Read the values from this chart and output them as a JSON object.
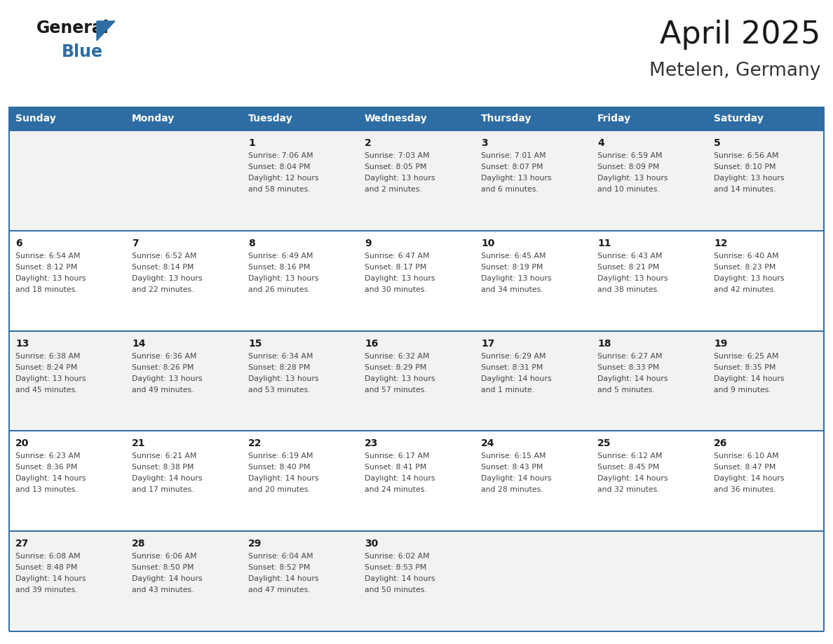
{
  "title": "April 2025",
  "subtitle": "Metelen, Germany",
  "header_bg_color": "#2E6DA4",
  "header_text_color": "#FFFFFF",
  "row_colors": [
    "#F2F2F2",
    "#FFFFFF",
    "#F2F2F2",
    "#FFFFFF",
    "#F2F2F2"
  ],
  "border_color": "#2E6DA4",
  "day_headers": [
    "Sunday",
    "Monday",
    "Tuesday",
    "Wednesday",
    "Thursday",
    "Friday",
    "Saturday"
  ],
  "title_color": "#1a1a1a",
  "subtitle_color": "#333333",
  "date_text_color": "#1a1a1a",
  "info_text_color": "#444444",
  "logo_general_color": "#1a1a1a",
  "logo_blue_color": "#2E6DA4",
  "weeks": [
    [
      {
        "day": null,
        "info": ""
      },
      {
        "day": null,
        "info": ""
      },
      {
        "day": 1,
        "info": "Sunrise: 7:06 AM\nSunset: 8:04 PM\nDaylight: 12 hours\nand 58 minutes."
      },
      {
        "day": 2,
        "info": "Sunrise: 7:03 AM\nSunset: 8:05 PM\nDaylight: 13 hours\nand 2 minutes."
      },
      {
        "day": 3,
        "info": "Sunrise: 7:01 AM\nSunset: 8:07 PM\nDaylight: 13 hours\nand 6 minutes."
      },
      {
        "day": 4,
        "info": "Sunrise: 6:59 AM\nSunset: 8:09 PM\nDaylight: 13 hours\nand 10 minutes."
      },
      {
        "day": 5,
        "info": "Sunrise: 6:56 AM\nSunset: 8:10 PM\nDaylight: 13 hours\nand 14 minutes."
      }
    ],
    [
      {
        "day": 6,
        "info": "Sunrise: 6:54 AM\nSunset: 8:12 PM\nDaylight: 13 hours\nand 18 minutes."
      },
      {
        "day": 7,
        "info": "Sunrise: 6:52 AM\nSunset: 8:14 PM\nDaylight: 13 hours\nand 22 minutes."
      },
      {
        "day": 8,
        "info": "Sunrise: 6:49 AM\nSunset: 8:16 PM\nDaylight: 13 hours\nand 26 minutes."
      },
      {
        "day": 9,
        "info": "Sunrise: 6:47 AM\nSunset: 8:17 PM\nDaylight: 13 hours\nand 30 minutes."
      },
      {
        "day": 10,
        "info": "Sunrise: 6:45 AM\nSunset: 8:19 PM\nDaylight: 13 hours\nand 34 minutes."
      },
      {
        "day": 11,
        "info": "Sunrise: 6:43 AM\nSunset: 8:21 PM\nDaylight: 13 hours\nand 38 minutes."
      },
      {
        "day": 12,
        "info": "Sunrise: 6:40 AM\nSunset: 8:23 PM\nDaylight: 13 hours\nand 42 minutes."
      }
    ],
    [
      {
        "day": 13,
        "info": "Sunrise: 6:38 AM\nSunset: 8:24 PM\nDaylight: 13 hours\nand 45 minutes."
      },
      {
        "day": 14,
        "info": "Sunrise: 6:36 AM\nSunset: 8:26 PM\nDaylight: 13 hours\nand 49 minutes."
      },
      {
        "day": 15,
        "info": "Sunrise: 6:34 AM\nSunset: 8:28 PM\nDaylight: 13 hours\nand 53 minutes."
      },
      {
        "day": 16,
        "info": "Sunrise: 6:32 AM\nSunset: 8:29 PM\nDaylight: 13 hours\nand 57 minutes."
      },
      {
        "day": 17,
        "info": "Sunrise: 6:29 AM\nSunset: 8:31 PM\nDaylight: 14 hours\nand 1 minute."
      },
      {
        "day": 18,
        "info": "Sunrise: 6:27 AM\nSunset: 8:33 PM\nDaylight: 14 hours\nand 5 minutes."
      },
      {
        "day": 19,
        "info": "Sunrise: 6:25 AM\nSunset: 8:35 PM\nDaylight: 14 hours\nand 9 minutes."
      }
    ],
    [
      {
        "day": 20,
        "info": "Sunrise: 6:23 AM\nSunset: 8:36 PM\nDaylight: 14 hours\nand 13 minutes."
      },
      {
        "day": 21,
        "info": "Sunrise: 6:21 AM\nSunset: 8:38 PM\nDaylight: 14 hours\nand 17 minutes."
      },
      {
        "day": 22,
        "info": "Sunrise: 6:19 AM\nSunset: 8:40 PM\nDaylight: 14 hours\nand 20 minutes."
      },
      {
        "day": 23,
        "info": "Sunrise: 6:17 AM\nSunset: 8:41 PM\nDaylight: 14 hours\nand 24 minutes."
      },
      {
        "day": 24,
        "info": "Sunrise: 6:15 AM\nSunset: 8:43 PM\nDaylight: 14 hours\nand 28 minutes."
      },
      {
        "day": 25,
        "info": "Sunrise: 6:12 AM\nSunset: 8:45 PM\nDaylight: 14 hours\nand 32 minutes."
      },
      {
        "day": 26,
        "info": "Sunrise: 6:10 AM\nSunset: 8:47 PM\nDaylight: 14 hours\nand 36 minutes."
      }
    ],
    [
      {
        "day": 27,
        "info": "Sunrise: 6:08 AM\nSunset: 8:48 PM\nDaylight: 14 hours\nand 39 minutes."
      },
      {
        "day": 28,
        "info": "Sunrise: 6:06 AM\nSunset: 8:50 PM\nDaylight: 14 hours\nand 43 minutes."
      },
      {
        "day": 29,
        "info": "Sunrise: 6:04 AM\nSunset: 8:52 PM\nDaylight: 14 hours\nand 47 minutes."
      },
      {
        "day": 30,
        "info": "Sunrise: 6:02 AM\nSunset: 8:53 PM\nDaylight: 14 hours\nand 50 minutes."
      },
      {
        "day": null,
        "info": ""
      },
      {
        "day": null,
        "info": ""
      },
      {
        "day": null,
        "info": ""
      }
    ]
  ]
}
